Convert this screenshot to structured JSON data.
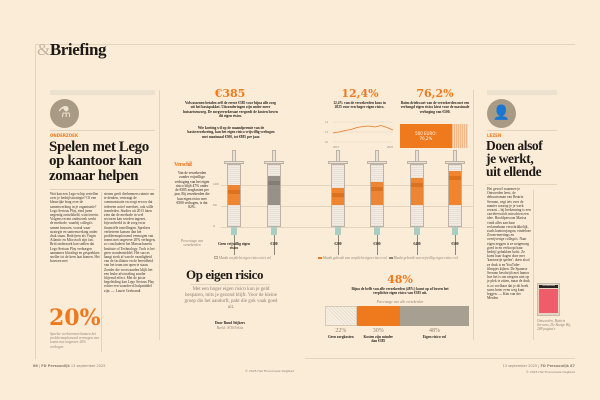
{
  "header": {
    "amp": "&",
    "title": "Briefing"
  },
  "left": {
    "label": "ONDERZOEK",
    "headline": [
      "Spelen met Lego",
      "op kantoor kan",
      "zomaar helpen"
    ],
    "col1": "Wat kan een Lego-schip vertellen over je bedrijfsstrategie? Of een kleurrijke brug over de samenwerking in je organisatie? Lego Serious Play, eind jaren negentig ontwikkeld, wint terrein. Volgens recent onderzoek werkt de methode, waarbij collega's samen bouwen, vooral waar strategie en samenwerking onder druk staan. Bedrijven als Virgin Atlantic en Microsoft zijn fan. Britt onderzoek kan stellen dat Lego Serious Play verborgen aannames blootlegt en gesprekken sneller tot de kern laat komen. Het bouwen met",
    "col2": "stenen geeft deelnemers ruimte om te denken, vertraagt de communicatie en zorgt ervoor dat iedereen actief meedoet, ook stille teamleden. Studies uit 2013 laten zien dat de methode in veel sectoren kan worden ingezet, bijvoorbeeld in de zorg en in financiële instellingen. Sprekers verbeteren kansen dan het probleemoplossend vermogen van teams met ongeveer 20% verhogen, zo concludeert het Massachusetts Institute of Technology. Toch is het geen wondermiddel. Het succes hangt sterk af van de vaardigheid van de facilitator en de bereidheid van het team om open te staan. Zonder die voorwaarden blijft het een leuke afwisseling zonder blijvend effect. Met de juiste begeleiding kan Lego Serious Play echter een waardevol hulpmiddel zijn. — Laurie Grebrandt",
    "stat": "20%",
    "stat_caption": "Speelse werkvormen kunnen het probleemoplossend vermogen van teams met ongeveer 20% verhogen."
  },
  "center": {
    "s1": {
      "value": "€385",
      "text": "Volwassenen betalen zelf de eerste €385 voor bijna alle zorg uit het basispakket. Uitzonderingen zijn onder meer huisartsenzorg. De zorgverzekeraar vergoedt de kosten boven dit eigen risico.",
      "text2": "Wie korting wil op de maandpremie van de basisverzekering, kan het eigen risico vrijwillig verhogen met maximaal €500, tot €885 per jaar."
    },
    "s2": {
      "value": "12,4%",
      "text": "12,4% van de verzekerden koos in 2025 voor een hoger eigen risico.",
      "y_ticks": [
        "14",
        "12",
        "10"
      ],
      "x_ticks": [
        "2015",
        "2025"
      ],
      "points": [
        11.8,
        12.0,
        12.3,
        12.5,
        12.9,
        13.1,
        13.2,
        13.0,
        13.3,
        12.9,
        12.4
      ]
    },
    "s3": {
      "value": "76,2%",
      "text": "Ruim driekwart van de verzekerden met een verhoogd eigen risico kiest voor de maximale verhoging van €500.",
      "bar_label": "500 EURO:",
      "bar_pct": "76,2%",
      "fraction": 76.2
    },
    "verschil": {
      "title": "Verschil",
      "text": "Van de verzekerden zonder vrijwillige verhoging van het eigen risico blijft 47% onder de €385 zorgkosten per jaar. Bij verzekerden die hun eigen risico met €500 verhogen, is dat 82%.",
      "note": "Percentage van verzekerden"
    },
    "syringe_axis": [
      "100",
      "50",
      "0"
    ],
    "syringes": [
      {
        "label": "Geen vrijwillig eigen risico",
        "fill": 47,
        "color": "#ef7a1e"
      },
      {
        "label": "€100",
        "fill": 68,
        "color": "#8e877e"
      },
      {
        "label": "€200",
        "fill": 40,
        "color": "#ef7a1e"
      },
      {
        "label": "€300",
        "fill": 55,
        "color": "#ef7a1e"
      },
      {
        "label": "€400",
        "fill": 65,
        "color": "#ef7a1e"
      },
      {
        "label": "€500",
        "fill": 82,
        "color": "#ef7a1e"
      }
    ],
    "legend_left": "Maakt verplicht eigen risico niet vol",
    "legend_right": [
      "Maakt gebruik van verplicht eigen risico vol",
      "Maakt gebruik van vrijwillig eigen risico vol"
    ],
    "title": "Op eigen risico",
    "subtitle": "Met een hoger eigen risico kun je geld besparen, mits je gezond blijft. Voor de kleine groep die het aandurft, pakt die gok vaak goed uit.",
    "byline": "Door Ruud Stijkers",
    "credit": "Beeld: NOS/Vektis",
    "s4": {
      "value": "48%",
      "text": "Bijna de helft van alle verzekerden (48%) komt op of boven het verplichte eigen risico van €385 uit.",
      "note": "Percentage van alle verzekerden",
      "segments": [
        {
          "pct": "22%",
          "value": 22,
          "label": "Geen zorgkosten"
        },
        {
          "pct": "30%",
          "value": 30,
          "label": "Kosten zijn minder dan €385"
        },
        {
          "pct": "48%",
          "value": 48,
          "label": "Eigen risico vol"
        }
      ]
    }
  },
  "right": {
    "label": "LEZEN",
    "headline": [
      "Doen alsof",
      "je werkt,",
      "uit ellende"
    ],
    "body": "Het gevoel waarmee je Ontwerden leest, de debuutroman van Beatriz Serrano, zegt iets over de manier waarop je je werk ervaart – bij herkenning is een carrièreswitch misschien een idee. Hoofdpersoon Marisa vindt alles aan haar reclamebaan verschrikkelijk, zoals kantoorjargon, eindeloze Zoom-meetings en overijverige collega's. Naar eigen zeggen is ze notgenoeg goed in en verkoopt haar bedrijf gebakken lucht. Ze komt haar dagen door met 'kantoortje spelen': doen alsof ze druk is en YouTube-filmpjes kijken. De Spaanse Serrano beschrijft met humor hoe het is om nergens niet op je plek te zitten, maar de druk is zo voelbaar dat je dit boek soms beter even weg kunt leggen. — Kim van der Meulen",
    "book_caption": "Ontwerden, Beatriz Serrano, De Bezige Bij, 288 pagina's",
    "book_title": "ONTWERDEN"
  },
  "footer": {
    "left_page": "86",
    "left_pub": "FD Persoonlijk",
    "left_date": "13 september 2025",
    "center": "© 2025 Het Financieele Dagblad",
    "right_date": "13 september 2025",
    "right_pub": "FD Persoonlijk",
    "right_page": "87",
    "right_copy": "© 2025 Het Financieele Dagblad"
  },
  "colors": {
    "background": "#fbecd7",
    "accent": "#ef7a1e",
    "grey": "#8e877e"
  }
}
